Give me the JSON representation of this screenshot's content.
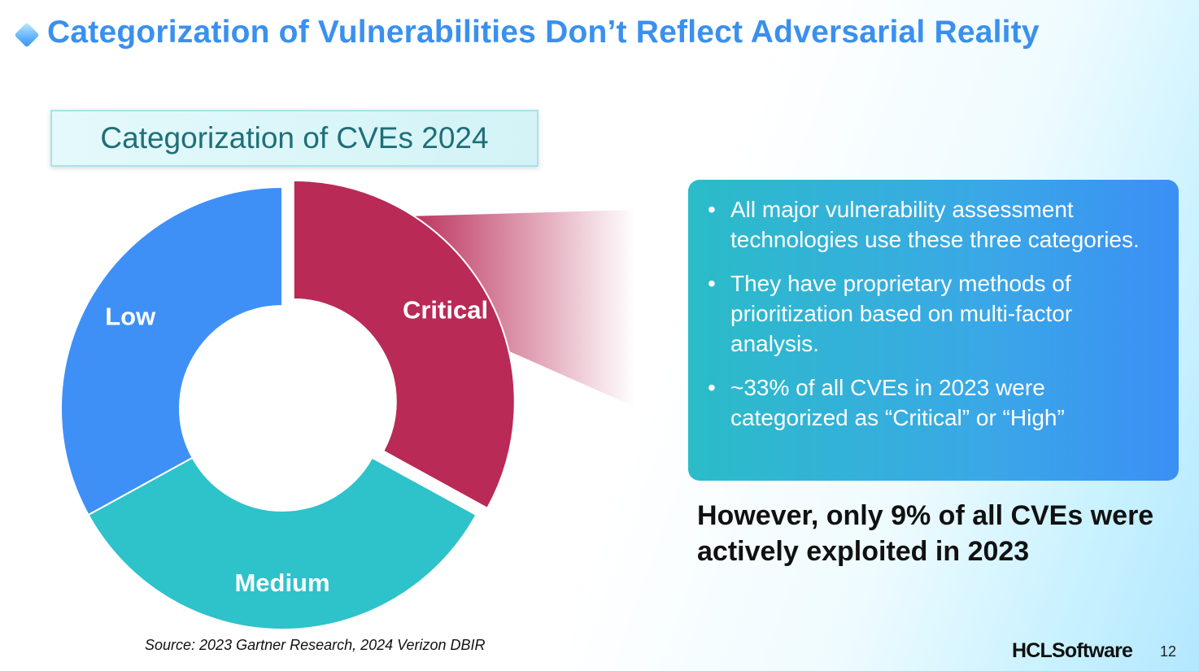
{
  "slide": {
    "title": "Categorization of Vulnerabilities Don’t Reflect Adversarial Reality",
    "page_number": "12",
    "logo_text": "HCLSoftware",
    "source": "Source: 2023 Gartner Research, 2024 Verizon DBIR"
  },
  "chart_data": {
    "type": "pie",
    "title": "Categorization of CVEs 2024",
    "style": "donut",
    "categories": [
      "Critical",
      "Medium",
      "Low"
    ],
    "values": [
      33,
      34,
      33
    ],
    "colors": [
      "#b92a56",
      "#2ec2cb",
      "#3e90f7"
    ],
    "exploded": "Critical"
  },
  "info_box": {
    "bullets": [
      "All major vulnerability assessment technologies use these three categories.",
      "They have proprietary methods of prioritization based on multi-factor analysis.",
      "~33% of all CVEs in 2023 were categorized as “Critical” or “High”"
    ]
  },
  "conclusion": "However, only 9% of all CVEs were actively exploited in 2023"
}
